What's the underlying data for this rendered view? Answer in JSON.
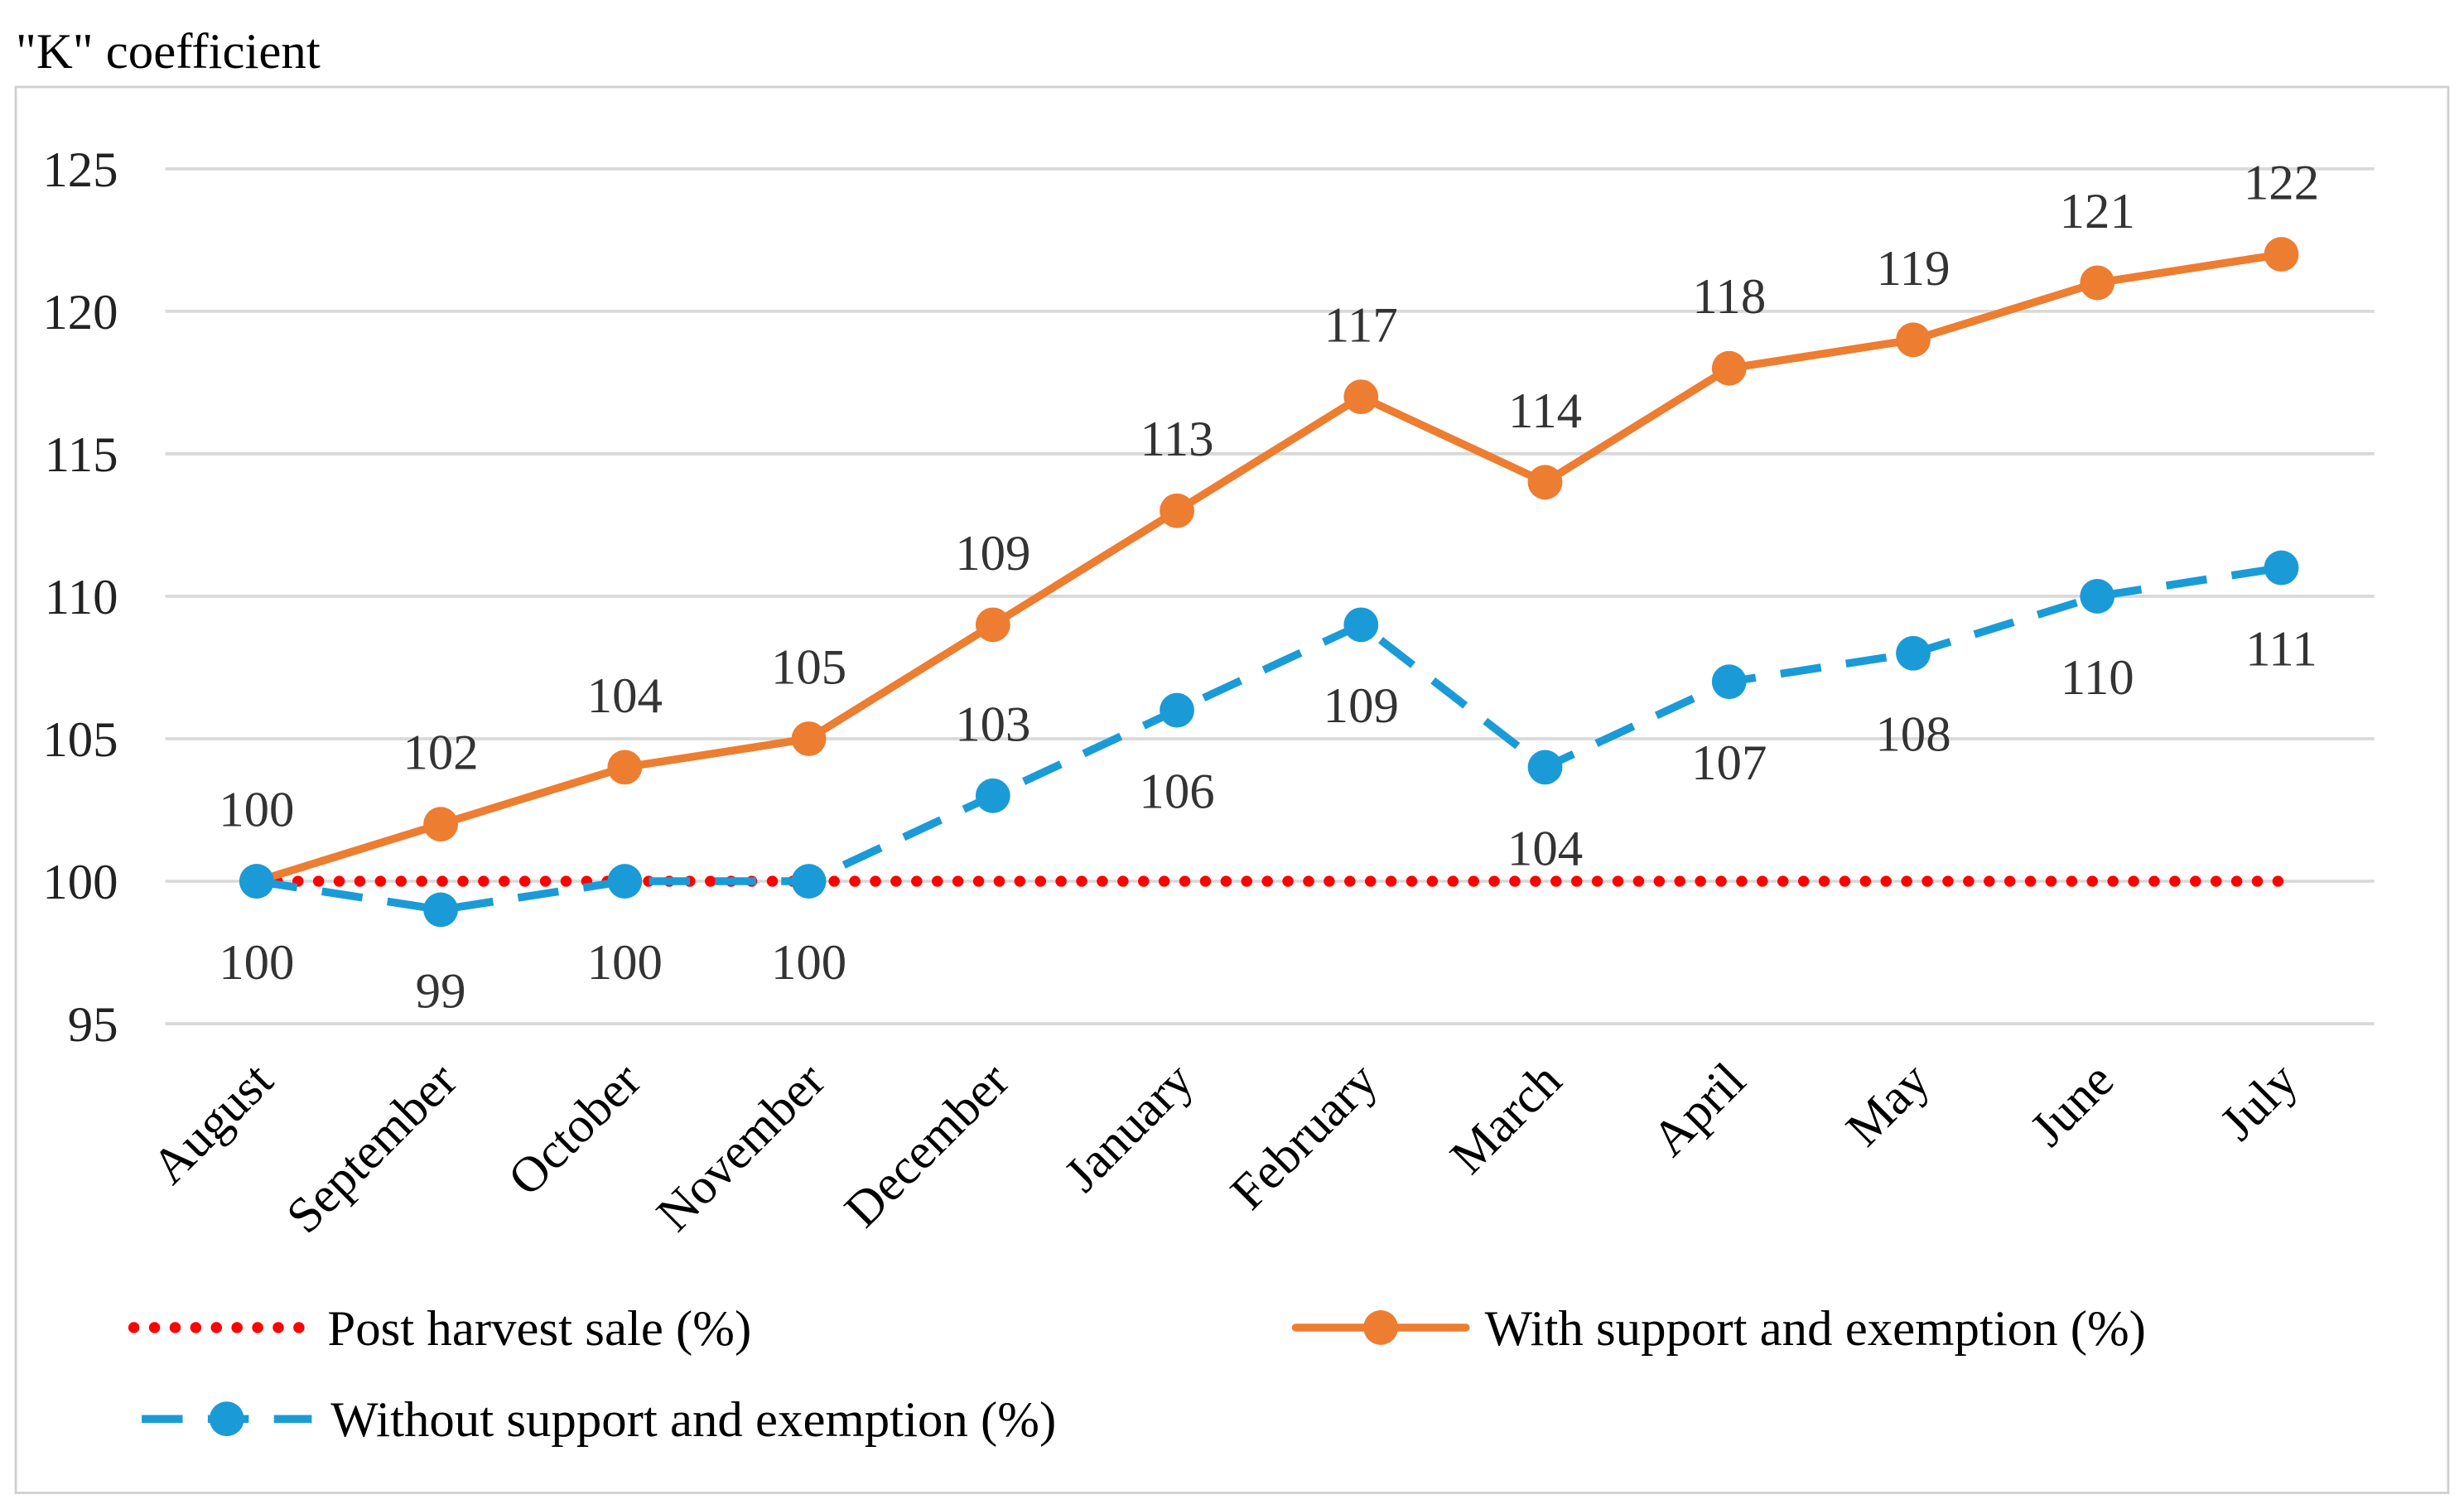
{
  "chart_data": {
    "type": "line",
    "title": "\"K\" coefficient",
    "xlabel": "",
    "ylabel": "\"K\" coefficient",
    "ylim": [
      95,
      125
    ],
    "yticks": [
      95,
      100,
      105,
      110,
      115,
      120,
      125
    ],
    "grid": true,
    "legend_placement": "bottom",
    "categories": [
      "August",
      "September",
      "October",
      "November",
      "December",
      "January",
      "February",
      "March",
      "April",
      "May",
      "June",
      "July"
    ],
    "series": [
      {
        "name": "Post harvest sale (%)",
        "color": "#FF0000",
        "style": "dotted",
        "markers": false,
        "labels": false,
        "values": [
          100,
          100,
          100,
          100,
          100,
          100,
          100,
          100,
          100,
          100,
          100,
          100
        ]
      },
      {
        "name": "With support and exemption (%)",
        "color": "#ED7D31",
        "style": "solid",
        "markers": true,
        "labels": true,
        "values": [
          100,
          102,
          104,
          105,
          109,
          113,
          117,
          114,
          118,
          119,
          121,
          122
        ]
      },
      {
        "name": "Without support and exemption (%)",
        "color": "#1A9BD7",
        "style": "dashed",
        "markers": true,
        "labels": true,
        "values": [
          100,
          99,
          100,
          100,
          103,
          106,
          109,
          104,
          107,
          108,
          110,
          111
        ]
      }
    ]
  }
}
